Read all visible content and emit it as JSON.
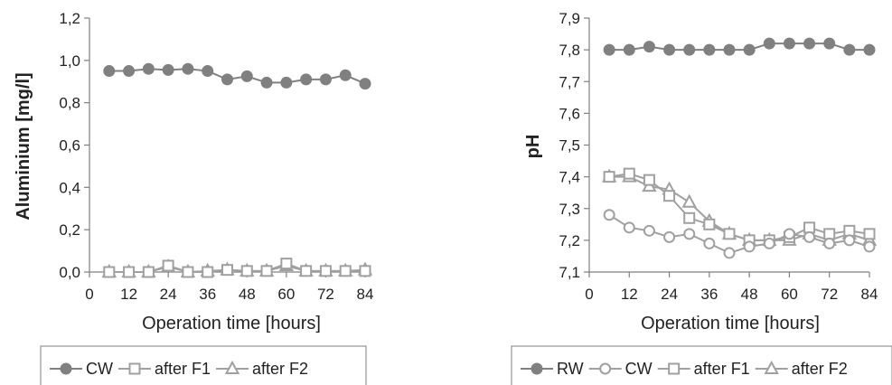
{
  "colors": {
    "filled": "#808080",
    "outline": "#a0a0a0",
    "axis": "#7f7f7f",
    "text": "#222222"
  },
  "chart_data": [
    {
      "type": "line",
      "xlabel": "Operation time [hours]",
      "ylabel": "Aluminium [mg/l]",
      "xlim": [
        0,
        84
      ],
      "ylim": [
        0.0,
        1.2
      ],
      "xticks": [
        "0",
        "12",
        "24",
        "36",
        "48",
        "60",
        "72",
        "84"
      ],
      "yticks": [
        "0,0",
        "0,2",
        "0,4",
        "0,6",
        "0,8",
        "1,0",
        "1,2"
      ],
      "grid": false,
      "legend_position": "bottom",
      "x": [
        6,
        12,
        18,
        24,
        30,
        36,
        42,
        48,
        54,
        60,
        66,
        72,
        78,
        84
      ],
      "series": [
        {
          "name": "CW",
          "marker": "circle-filled",
          "values": [
            0.95,
            0.95,
            0.96,
            0.955,
            0.96,
            0.95,
            0.91,
            0.925,
            0.895,
            0.895,
            0.91,
            0.91,
            0.93,
            0.89
          ]
        },
        {
          "name": "after F1",
          "marker": "square-open",
          "values": [
            0.0,
            0.0,
            0.0,
            0.03,
            0.0,
            0.0,
            0.01,
            0.005,
            0.005,
            0.04,
            0.005,
            0.005,
            0.005,
            0.005
          ]
        },
        {
          "name": "after F2",
          "marker": "triangle-open",
          "values": [
            0.0,
            0.0,
            0.0,
            0.025,
            0.0,
            0.005,
            0.01,
            0.005,
            0.005,
            0.03,
            0.005,
            0.005,
            0.005,
            0.01
          ]
        }
      ]
    },
    {
      "type": "line",
      "xlabel": "Operation time [hours]",
      "ylabel": "pH",
      "xlim": [
        0,
        84
      ],
      "ylim": [
        7.1,
        7.9
      ],
      "xticks": [
        "0",
        "12",
        "24",
        "36",
        "48",
        "60",
        "72",
        "84"
      ],
      "yticks": [
        "7,1",
        "7,2",
        "7,3",
        "7,4",
        "7,5",
        "7,6",
        "7,7",
        "7,8",
        "7,9"
      ],
      "grid": false,
      "legend_position": "bottom",
      "x": [
        6,
        12,
        18,
        24,
        30,
        36,
        42,
        48,
        54,
        60,
        66,
        72,
        78,
        84
      ],
      "series": [
        {
          "name": "RW",
          "marker": "circle-filled",
          "values": [
            7.8,
            7.8,
            7.81,
            7.8,
            7.8,
            7.8,
            7.8,
            7.8,
            7.82,
            7.82,
            7.82,
            7.82,
            7.8,
            7.8
          ]
        },
        {
          "name": "CW",
          "marker": "circle-open",
          "values": [
            7.28,
            7.24,
            7.23,
            7.21,
            7.22,
            7.19,
            7.16,
            7.18,
            7.19,
            7.22,
            7.21,
            7.19,
            7.2,
            7.18
          ]
        },
        {
          "name": "after F1",
          "marker": "square-open",
          "values": [
            7.4,
            7.41,
            7.39,
            7.34,
            7.27,
            7.25,
            7.22,
            7.2,
            7.2,
            7.21,
            7.24,
            7.22,
            7.23,
            7.22
          ]
        },
        {
          "name": "after F2",
          "marker": "triangle-open",
          "values": [
            7.4,
            7.4,
            7.37,
            7.36,
            7.32,
            7.26,
            7.22,
            7.2,
            7.2,
            7.2,
            7.22,
            7.2,
            7.22,
            7.2
          ]
        }
      ]
    }
  ]
}
